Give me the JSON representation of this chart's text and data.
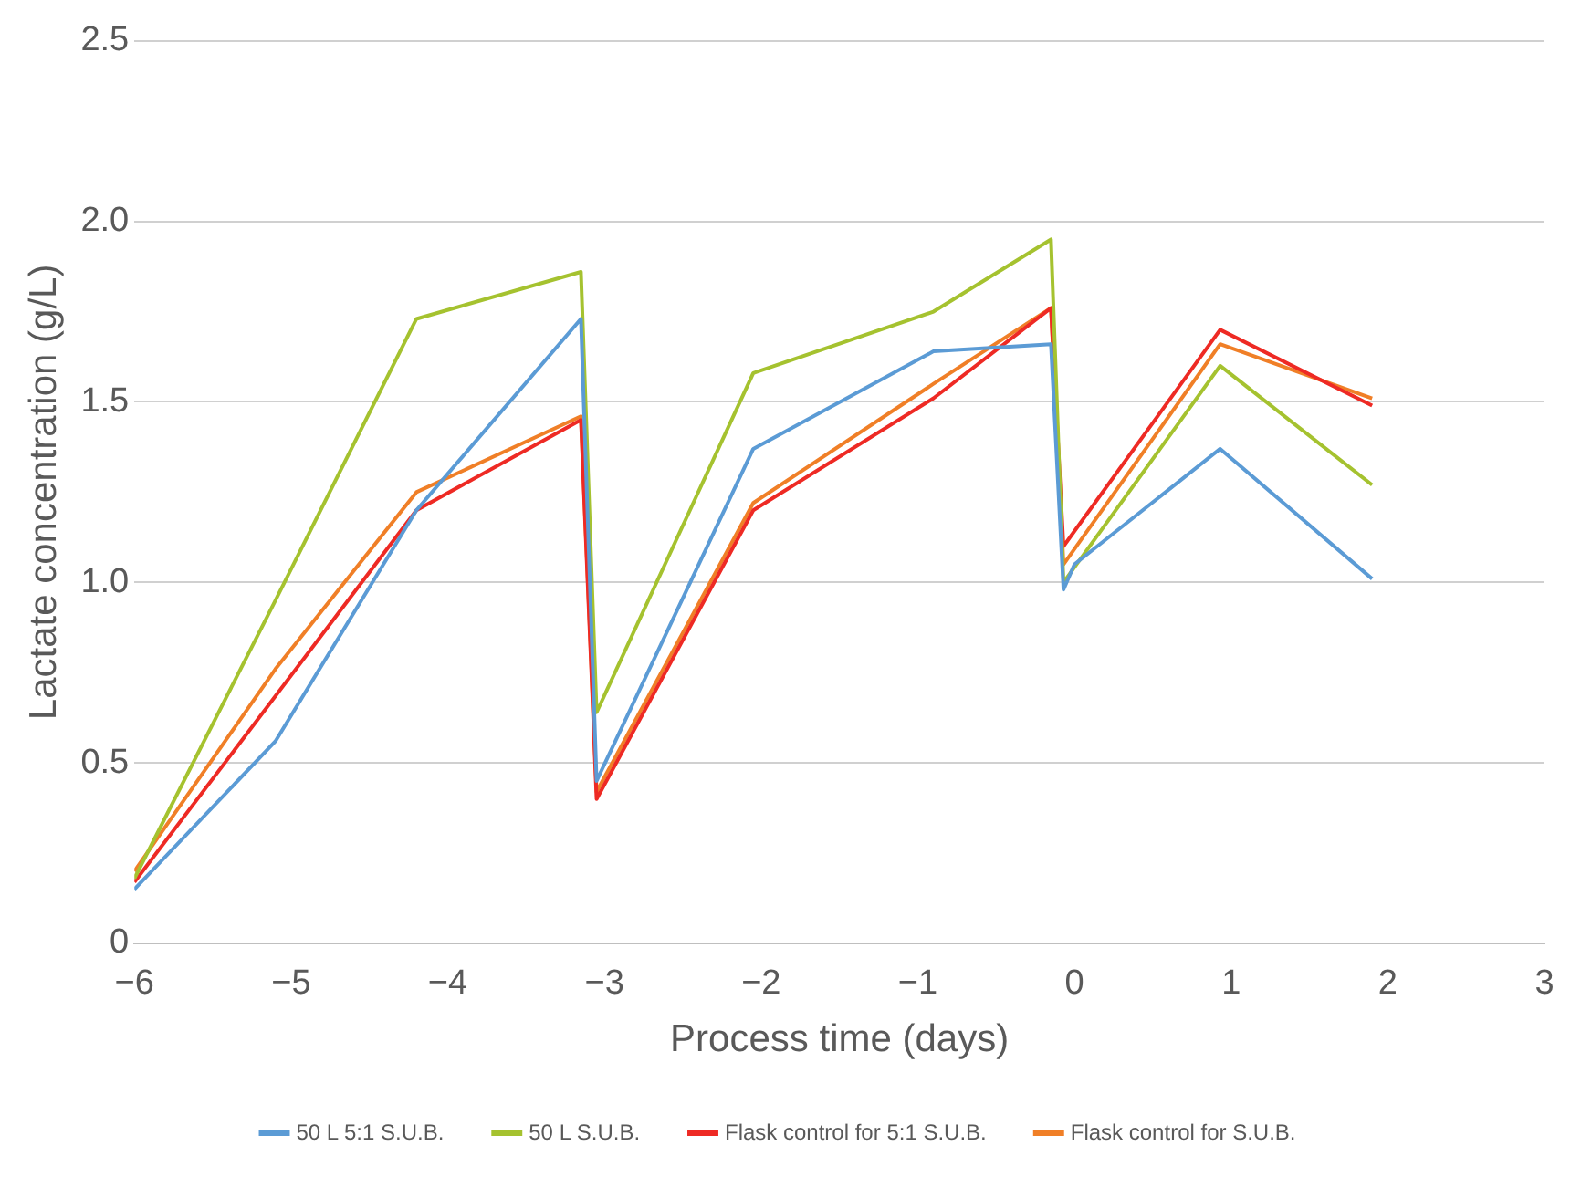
{
  "chart_data": {
    "type": "line",
    "xlabel": "Process time (days)",
    "ylabel": "Lactate concentration (g/L)",
    "xlim": [
      -6,
      3
    ],
    "xticks": [
      {
        "value": -6,
        "label": "−6"
      },
      {
        "value": -5,
        "label": "−5"
      },
      {
        "value": -4,
        "label": "−4"
      },
      {
        "value": -3,
        "label": "−3"
      },
      {
        "value": -2,
        "label": "−2"
      },
      {
        "value": -1,
        "label": "−1"
      },
      0,
      1,
      2,
      3
    ],
    "ylim": [
      0,
      2.5
    ],
    "yticks": [
      {
        "value": 0,
        "label": "0"
      },
      {
        "value": 0.5,
        "label": "0.5"
      },
      {
        "value": 1,
        "label": "1.0"
      },
      {
        "value": 1.5,
        "label": "1.5"
      },
      {
        "value": 2,
        "label": "2.0"
      },
      {
        "value": 2.5,
        "label": "2.5"
      }
    ],
    "grid": "y",
    "legend": "bottom",
    "marker": "none",
    "line_style": "solid",
    "series": [
      {
        "name": "50 L 5:1 S.U.B.",
        "color": "#5b9bd5",
        "x": [
          -6,
          -5.1,
          -4.2,
          -3.15,
          -3.05,
          -2.05,
          -0.9,
          -0.15,
          -0.07,
          0,
          0.93,
          1.9
        ],
        "values": [
          0.15,
          0.56,
          1.2,
          1.73,
          0.45,
          1.37,
          1.64,
          1.66,
          0.98,
          1.05,
          1.37,
          1.01
        ]
      },
      {
        "name": "50 L S.U.B.",
        "color": "#a5c22f",
        "x": [
          -6,
          -5.1,
          -4.2,
          -3.15,
          -3.05,
          -2.05,
          -0.9,
          -0.15,
          -0.07,
          0.93,
          1.9
        ],
        "values": [
          0.18,
          0.95,
          1.73,
          1.86,
          0.64,
          1.58,
          1.75,
          1.95,
          1.0,
          1.6,
          1.27
        ]
      },
      {
        "name": "Flask control for 5:1 S.U.B.",
        "color": "#ee2a24",
        "x": [
          -6,
          -4.2,
          -3.15,
          -3.05,
          -2.05,
          -0.9,
          -0.15,
          -0.07,
          0.93,
          1.9
        ],
        "values": [
          0.17,
          1.2,
          1.45,
          0.4,
          1.2,
          1.51,
          1.76,
          1.1,
          1.7,
          1.49
        ]
      },
      {
        "name": "Flask control for S.U.B.",
        "color": "#f07f27",
        "x": [
          -6,
          -5.1,
          -4.2,
          -3.15,
          -3.05,
          -2.05,
          -0.9,
          -0.15,
          -0.07,
          0.93,
          1.9
        ],
        "values": [
          0.2,
          0.76,
          1.25,
          1.46,
          0.42,
          1.22,
          1.55,
          1.76,
          1.05,
          1.66,
          1.51
        ]
      }
    ]
  }
}
